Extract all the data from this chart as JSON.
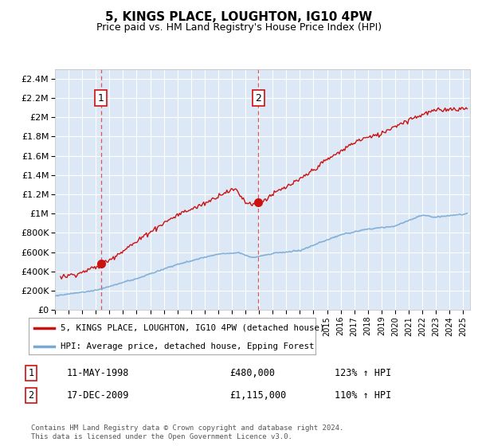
{
  "title": "5, KINGS PLACE, LOUGHTON, IG10 4PW",
  "subtitle": "Price paid vs. HM Land Registry's House Price Index (HPI)",
  "plot_bg_color": "#dce8f5",
  "ylim": [
    0,
    2500000
  ],
  "yticks": [
    0,
    200000,
    400000,
    600000,
    800000,
    1000000,
    1200000,
    1400000,
    1600000,
    1800000,
    2000000,
    2200000,
    2400000
  ],
  "ytick_labels": [
    "£0",
    "£200K",
    "£400K",
    "£600K",
    "£800K",
    "£1M",
    "£1.2M",
    "£1.4M",
    "£1.6M",
    "£1.8M",
    "£2M",
    "£2.2M",
    "£2.4M"
  ],
  "xlim_start": 1995.0,
  "xlim_end": 2025.5,
  "sale1_year": 1998.37,
  "sale1_price": 480000,
  "sale2_year": 2009.96,
  "sale2_price": 1115000,
  "sale1_label": "1",
  "sale2_label": "2",
  "legend_line1": "5, KINGS PLACE, LOUGHTON, IG10 4PW (detached house)",
  "legend_line2": "HPI: Average price, detached house, Epping Forest",
  "annotation1_date": "11-MAY-1998",
  "annotation1_price": "£480,000",
  "annotation1_hpi": "123% ↑ HPI",
  "annotation2_date": "17-DEC-2009",
  "annotation2_price": "£1,115,000",
  "annotation2_hpi": "110% ↑ HPI",
  "footer": "Contains HM Land Registry data © Crown copyright and database right 2024.\nThis data is licensed under the Open Government Licence v3.0.",
  "hpi_color": "#7aaad4",
  "sale_color": "#cc1111",
  "dashed_line_color": "#dd4444"
}
